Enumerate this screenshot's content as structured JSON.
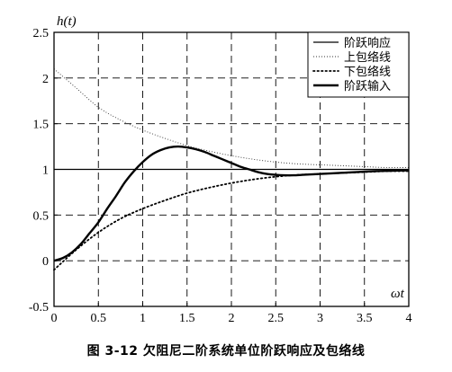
{
  "caption": "图 3-12 欠阻尼二阶系统单位阶跃响应及包络线",
  "chart_data": {
    "type": "line",
    "title": "",
    "ylabel": "h(t)",
    "xlabel": "ωt",
    "xlim": [
      0,
      4
    ],
    "ylim": [
      -0.5,
      2.5
    ],
    "xticks": [
      "0",
      "0.5",
      "1",
      "1.5",
      "2",
      "2.5",
      "3",
      "3.5",
      "4"
    ],
    "yticks": [
      "-0.5",
      "0",
      "0.5",
      "1",
      "1.5",
      "2",
      "2.5"
    ],
    "grid": true,
    "legend_position": "top-right",
    "legend": [
      "阶跃响应",
      "上包络线",
      "下包络线",
      "阶跃输入"
    ],
    "series": [
      {
        "name": "阶跃响应",
        "style": "solid-thick",
        "x": [
          0,
          0.1,
          0.2,
          0.3,
          0.4,
          0.5,
          0.6,
          0.7,
          0.8,
          0.9,
          1.0,
          1.1,
          1.2,
          1.3,
          1.4,
          1.5,
          1.6,
          1.7,
          1.8,
          1.9,
          2.0,
          2.1,
          2.2,
          2.3,
          2.4,
          2.5,
          2.6,
          2.7,
          2.8,
          2.9,
          3.0,
          3.2,
          3.4,
          3.6,
          3.8,
          4.0
        ],
        "y": [
          0,
          0.03,
          0.09,
          0.18,
          0.3,
          0.42,
          0.57,
          0.71,
          0.86,
          0.98,
          1.08,
          1.16,
          1.21,
          1.24,
          1.25,
          1.24,
          1.22,
          1.19,
          1.15,
          1.11,
          1.07,
          1.03,
          1.0,
          0.97,
          0.95,
          0.94,
          0.935,
          0.935,
          0.94,
          0.945,
          0.95,
          0.96,
          0.97,
          0.98,
          0.985,
          0.99
        ]
      },
      {
        "name": "上包络线",
        "style": "dotted-fine",
        "x": [
          0,
          0.25,
          0.5,
          0.75,
          1.0,
          1.25,
          1.5,
          1.75,
          2.0,
          2.25,
          2.5,
          2.75,
          3.0,
          3.25,
          3.5,
          3.75,
          4.0
        ],
        "y": [
          2.1,
          1.89,
          1.68,
          1.54,
          1.43,
          1.34,
          1.26,
          1.2,
          1.15,
          1.11,
          1.08,
          1.06,
          1.05,
          1.04,
          1.03,
          1.02,
          1.02
        ]
      },
      {
        "name": "下包络线",
        "style": "dotted",
        "x": [
          0,
          0.25,
          0.5,
          0.75,
          1.0,
          1.25,
          1.5,
          1.75,
          2.0,
          2.25,
          2.5,
          2.75,
          3.0,
          3.25,
          3.5,
          3.75,
          4.0
        ],
        "y": [
          -0.1,
          0.12,
          0.31,
          0.46,
          0.57,
          0.66,
          0.74,
          0.8,
          0.85,
          0.89,
          0.92,
          0.94,
          0.95,
          0.96,
          0.97,
          0.98,
          0.98
        ]
      },
      {
        "name": "阶跃输入",
        "style": "solid-thin",
        "x": [
          0,
          4
        ],
        "y": [
          1,
          1
        ]
      }
    ]
  }
}
